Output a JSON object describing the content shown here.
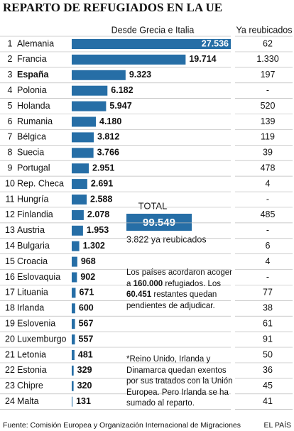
{
  "chart_data": {
    "type": "bar",
    "title": "REPARTO DE REFUGIADOS EN LA UE",
    "value_header": "Desde Grecia e Italia",
    "side_header": "Ya reubicados",
    "ranks": [
      1,
      2,
      3,
      4,
      5,
      6,
      7,
      8,
      9,
      10,
      11,
      12,
      13,
      14,
      15,
      16,
      17,
      18,
      19,
      20,
      21,
      22,
      23,
      24
    ],
    "categories": [
      "Alemania",
      "Francia",
      "España",
      "Polonia",
      "Holanda",
      "Rumania",
      "Bélgica",
      "Suecia",
      "Portugal",
      "Rep. Checa",
      "Hungría",
      "Finlandia",
      "Austria",
      "Bulgaria",
      "Croacia",
      "Eslovaquia",
      "Lituania",
      "Irlanda",
      "Eslovenia",
      "Luxemburgo",
      "Letonia",
      "Estonia",
      "Chipre",
      "Malta"
    ],
    "values": [
      27536,
      19714,
      9323,
      6182,
      5947,
      4180,
      3812,
      3766,
      2951,
      2691,
      2588,
      2078,
      1953,
      1302,
      968,
      902,
      671,
      600,
      567,
      557,
      481,
      329,
      320,
      131
    ],
    "value_labels": [
      "27.536",
      "19.714",
      "9.323",
      "6.182",
      "5.947",
      "4.180",
      "3.812",
      "3.766",
      "2.951",
      "2.691",
      "2.588",
      "2.078",
      "1.953",
      "1.302",
      "968",
      "902",
      "671",
      "600",
      "567",
      "557",
      "481",
      "329",
      "320",
      "131"
    ],
    "side_values": [
      "62",
      "1.330",
      "197",
      "-",
      "520",
      "139",
      "119",
      "39",
      "478",
      "4",
      "-",
      "485",
      "-",
      "6",
      "4",
      "-",
      "77",
      "38",
      "61",
      "91",
      "50",
      "36",
      "45",
      "41"
    ],
    "color": "#266ea6",
    "highlight_index": 2,
    "total_label": "TOTAL",
    "total_value": "99.549",
    "total_relocated": "3.822 ya reubicados",
    "note": [
      "Los países acordaron acoger a ",
      "160.000",
      " refugiados. Los ",
      "60.451",
      " restantes quedan pendientes de adjudicar."
    ],
    "footnote": "*Reino Unido, Irlanda y Dinamarca quedan exentos por sus tratados con la Unión Europea. Pero Irlanda se ha sumado al reparto.",
    "source": "Fuente: Comisión Europea y Organización Internacional de Migraciones",
    "brand": "EL PAÍS"
  }
}
